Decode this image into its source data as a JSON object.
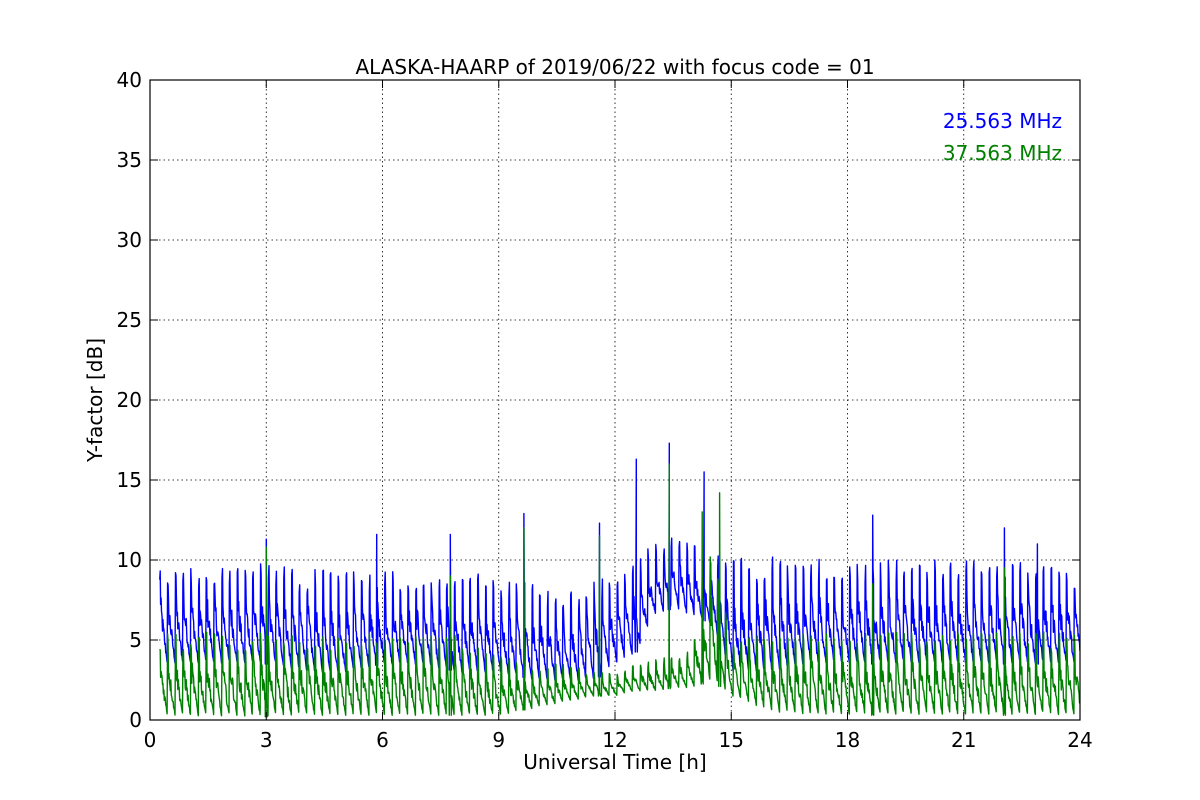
{
  "chart_data": {
    "type": "line",
    "title": "ALASKA-HAARP of 2019/06/22 with focus code = 01",
    "xlabel": "Universal Time [h]",
    "ylabel": "Y-factor [dB]",
    "xlim": [
      0,
      24
    ],
    "ylim": [
      0,
      40
    ],
    "xticks": [
      0,
      3,
      6,
      9,
      12,
      15,
      18,
      21,
      24
    ],
    "yticks": [
      0,
      5,
      10,
      15,
      20,
      25,
      30,
      35,
      40
    ],
    "grid": true,
    "legend_position": "top-right",
    "series": [
      {
        "name": "25.563 MHz",
        "color": "#0000ff",
        "envelope": {
          "x": [
            0.25,
            1,
            2,
            3,
            4,
            5,
            6,
            7,
            8,
            9,
            10,
            10.8,
            11.5,
            12,
            12.5,
            13,
            13.5,
            14,
            14.5,
            15,
            16,
            17,
            18,
            19,
            20,
            21,
            22,
            23,
            24
          ],
          "low": [
            3.5,
            3.5,
            3.5,
            3.5,
            3.0,
            3.0,
            3.5,
            3.5,
            3.0,
            3.0,
            2.5,
            2.5,
            2.5,
            3.5,
            4.0,
            6.5,
            7.0,
            6.5,
            6.0,
            3.0,
            3.0,
            3.5,
            3.5,
            3.5,
            3.5,
            3.5,
            3.5,
            3.5,
            3.5
          ],
          "high": [
            9.8,
            9.8,
            9.8,
            9.8,
            9.5,
            9.3,
            9.3,
            9.3,
            9.3,
            9.0,
            8.5,
            8.0,
            9.0,
            9.3,
            10.0,
            11.0,
            11.5,
            11.0,
            10.5,
            10.0,
            10.5,
            10.2,
            10.0,
            10.0,
            10.0,
            10.0,
            10.0,
            10.0,
            9.5
          ]
        },
        "spikes": [
          {
            "x": 3.0,
            "y": 11.3
          },
          {
            "x": 5.85,
            "y": 11.6
          },
          {
            "x": 7.75,
            "y": 11.6
          },
          {
            "x": 9.65,
            "y": 12.9
          },
          {
            "x": 11.6,
            "y": 12.3
          },
          {
            "x": 12.55,
            "y": 16.3
          },
          {
            "x": 13.4,
            "y": 17.3
          },
          {
            "x": 14.3,
            "y": 15.5
          },
          {
            "x": 18.65,
            "y": 12.8
          },
          {
            "x": 22.05,
            "y": 12.0
          },
          {
            "x": 22.9,
            "y": 11.0
          }
        ]
      },
      {
        "name": "37.563 MHz",
        "color": "#008000",
        "envelope": {
          "x": [
            0.25,
            1,
            2,
            3,
            4,
            5,
            6,
            7,
            8,
            9,
            10,
            10.8,
            11.5,
            12,
            12.5,
            13,
            13.5,
            14,
            14.5,
            15,
            16,
            17,
            18,
            19,
            20,
            21,
            22,
            23,
            24
          ],
          "low": [
            0.3,
            0.2,
            0.2,
            0.2,
            0.3,
            0.3,
            0.3,
            0.3,
            0.3,
            0.3,
            0.8,
            1.2,
            1.5,
            1.5,
            1.8,
            1.8,
            2.0,
            2.0,
            2.5,
            1.5,
            0.5,
            0.3,
            0.3,
            0.3,
            0.3,
            0.3,
            0.3,
            0.3,
            0.3
          ],
          "high": [
            5.5,
            5.5,
            5.5,
            5.5,
            5.3,
            5.2,
            5.5,
            5.3,
            5.3,
            4.0,
            3.5,
            3.5,
            3.0,
            3.0,
            3.5,
            3.8,
            4.0,
            4.5,
            11.0,
            5.0,
            5.5,
            5.5,
            5.5,
            5.5,
            5.5,
            5.5,
            5.5,
            5.5,
            5.5
          ]
        },
        "spikes": [
          {
            "x": 3.0,
            "y": 10.8
          },
          {
            "x": 7.75,
            "y": 9.0
          },
          {
            "x": 9.65,
            "y": 12.0
          },
          {
            "x": 11.6,
            "y": 11.5
          },
          {
            "x": 13.4,
            "y": 16.0
          },
          {
            "x": 14.25,
            "y": 13.0
          },
          {
            "x": 14.7,
            "y": 14.2
          },
          {
            "x": 18.65,
            "y": 8.5
          },
          {
            "x": 22.05,
            "y": 9.5
          }
        ]
      }
    ]
  }
}
